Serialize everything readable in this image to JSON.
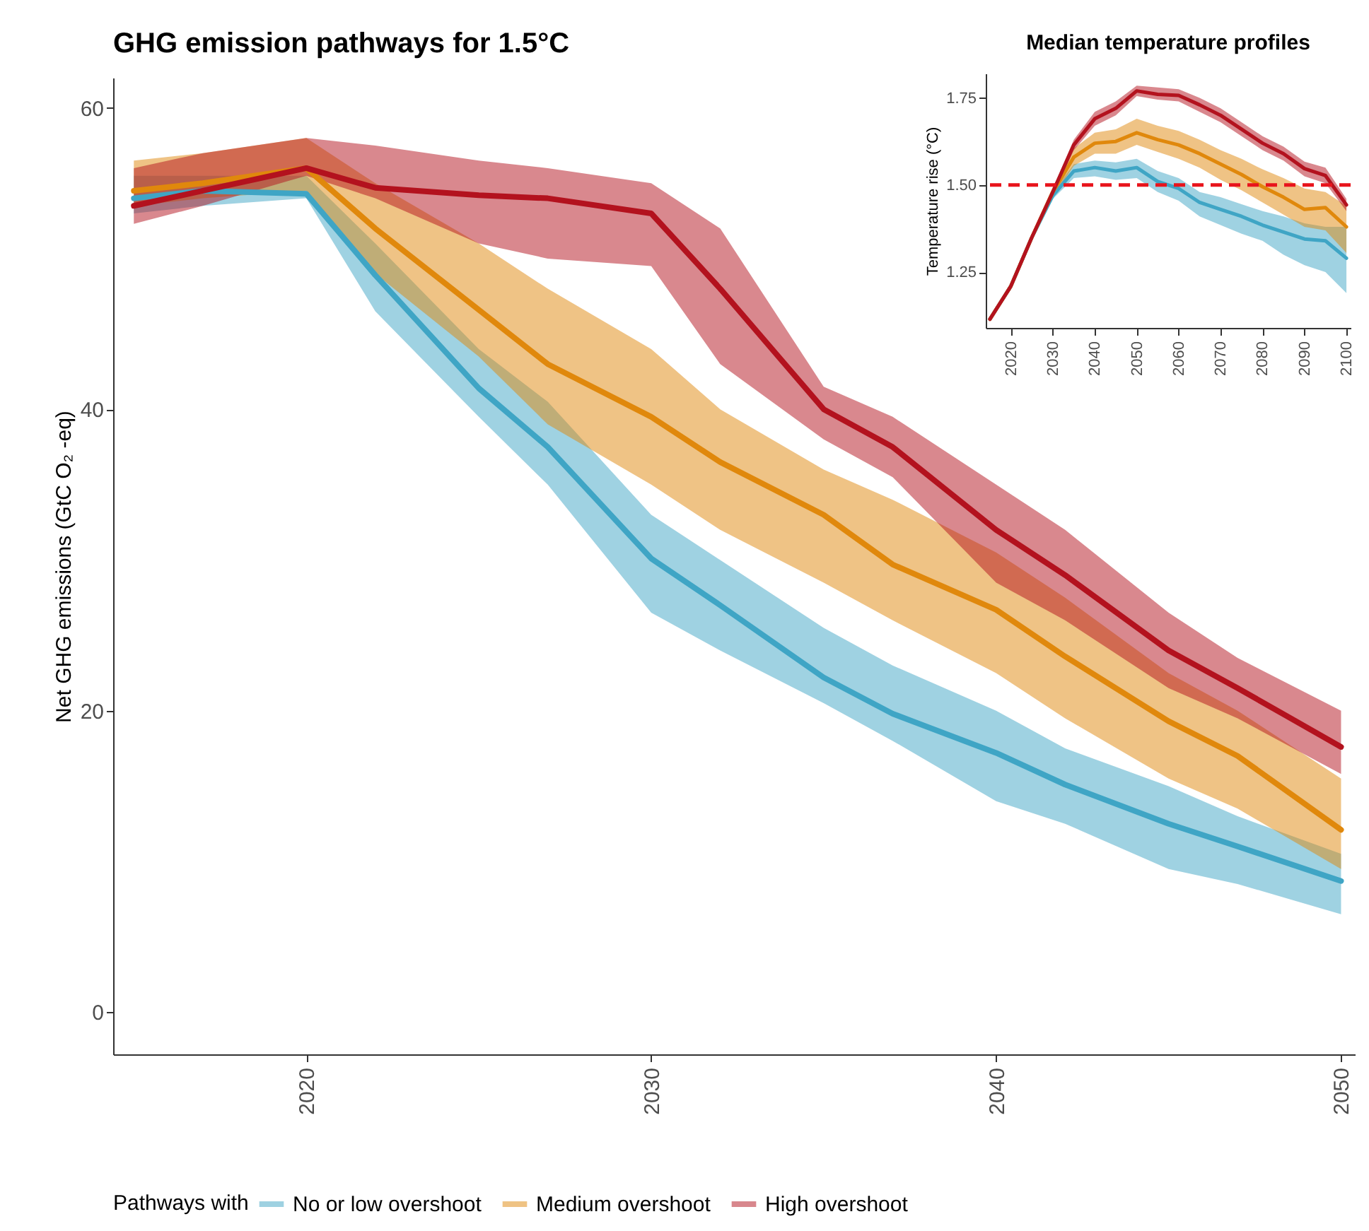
{
  "chart_data": [
    {
      "type": "line",
      "title": "GHG emission pathways for 1.5°C",
      "ylabel": "Net GHG emissions (GtC O₂ -eq)",
      "legend_title": "Pathways with",
      "legend": "bottom",
      "grid": false,
      "x": [
        2015,
        2017,
        2020,
        2022,
        2025,
        2027,
        2030,
        2032,
        2035,
        2037,
        2040,
        2042,
        2045,
        2047,
        2050
      ],
      "xlim": [
        2014.4,
        2050.4
      ],
      "xticks": [
        2020,
        2030,
        2040,
        2050
      ],
      "ylim": [
        -2.8,
        62
      ],
      "yticks": [
        0,
        20,
        40,
        60
      ],
      "series": [
        {
          "name": "No or low overshoot",
          "color": "#3fa5c5",
          "values": [
            54,
            54.5,
            54.3,
            48.9,
            41.4,
            37.5,
            30.1,
            27,
            22.2,
            19.8,
            17.2,
            15.1,
            12.5,
            11,
            8.7
          ],
          "lower": [
            53,
            53.5,
            54,
            46.5,
            39.5,
            35,
            26.5,
            24,
            20.5,
            18,
            14,
            12.5,
            9.5,
            8.5,
            6.5
          ],
          "upper": [
            55.5,
            55.5,
            55.5,
            51,
            44,
            40.5,
            33,
            30,
            25.5,
            23,
            20,
            17.5,
            15,
            13,
            10.5
          ]
        },
        {
          "name": "Medium overshoot",
          "color": "#e0880c",
          "values": [
            54.5,
            55,
            56,
            52,
            46.6,
            43,
            39.5,
            36.5,
            33,
            29.7,
            26.7,
            23.6,
            19.3,
            17,
            12.1
          ],
          "lower": [
            53.5,
            54,
            54.5,
            49,
            43.5,
            39,
            35,
            32,
            28.5,
            26,
            22.5,
            19.5,
            15.5,
            13.5,
            9.5
          ],
          "upper": [
            56.5,
            57,
            58,
            55,
            51,
            48,
            44,
            40,
            36,
            34,
            30.5,
            27.5,
            22.5,
            20,
            15.5
          ]
        },
        {
          "name": "High overshoot",
          "color": "#b3121e",
          "values": [
            53.5,
            54.5,
            56,
            54.7,
            54.2,
            54,
            53,
            48,
            40,
            37.5,
            32,
            29,
            24,
            21.5,
            17.6
          ],
          "lower": [
            52.3,
            53.5,
            55.5,
            54,
            51,
            50,
            49.5,
            43,
            38,
            35.5,
            28.5,
            26,
            21.5,
            19.5,
            15.8
          ],
          "upper": [
            56,
            57,
            58,
            57.5,
            56.5,
            56,
            55,
            52,
            41.5,
            39.5,
            35,
            32,
            26.5,
            23.5,
            20
          ]
        }
      ]
    },
    {
      "type": "line",
      "title": "Median temperature profiles",
      "ylabel": "Temperature rise (°C)",
      "grid": false,
      "x": [
        2015,
        2020,
        2025,
        2030,
        2035,
        2040,
        2045,
        2050,
        2055,
        2060,
        2065,
        2070,
        2075,
        2080,
        2085,
        2090,
        2095,
        2100
      ],
      "xlim": [
        2014,
        2101
      ],
      "xticks": [
        2020,
        2030,
        2040,
        2050,
        2060,
        2070,
        2080,
        2090,
        2100
      ],
      "ylim": [
        1.09,
        1.82
      ],
      "yticks": [
        1.25,
        {
          "value": 1.5,
          "label": "1.50"
        },
        1.75
      ],
      "ref_lines": [
        {
          "axis": "y",
          "value": 1.5,
          "color": "#e8141c",
          "line_style": "dashed"
        }
      ],
      "series": [
        {
          "color": "#3fa5c5",
          "values": [
            1.115,
            1.21,
            1.35,
            1.47,
            1.54,
            1.55,
            1.54,
            1.55,
            1.51,
            1.49,
            1.45,
            1.43,
            1.41,
            1.385,
            1.365,
            1.345,
            1.34,
            1.29
          ],
          "lower": [
            1.11,
            1.2,
            1.34,
            1.46,
            1.52,
            1.525,
            1.515,
            1.52,
            1.48,
            1.455,
            1.41,
            1.385,
            1.36,
            1.34,
            1.3,
            1.27,
            1.25,
            1.19
          ],
          "upper": [
            1.12,
            1.22,
            1.36,
            1.48,
            1.56,
            1.57,
            1.565,
            1.575,
            1.54,
            1.52,
            1.48,
            1.465,
            1.445,
            1.425,
            1.41,
            1.39,
            1.38,
            1.38
          ]
        },
        {
          "color": "#e0880c",
          "values": [
            1.115,
            1.21,
            1.35,
            1.48,
            1.58,
            1.62,
            1.625,
            1.65,
            1.63,
            1.615,
            1.59,
            1.56,
            1.53,
            1.495,
            1.465,
            1.43,
            1.435,
            1.38
          ],
          "lower": [
            1.11,
            1.2,
            1.34,
            1.465,
            1.555,
            1.59,
            1.59,
            1.615,
            1.595,
            1.575,
            1.55,
            1.515,
            1.485,
            1.45,
            1.415,
            1.38,
            1.37,
            1.305
          ],
          "upper": [
            1.12,
            1.22,
            1.36,
            1.495,
            1.605,
            1.65,
            1.66,
            1.69,
            1.67,
            1.655,
            1.63,
            1.6,
            1.575,
            1.545,
            1.52,
            1.49,
            1.48,
            1.44
          ]
        },
        {
          "color": "#b3121e",
          "values": [
            1.115,
            1.21,
            1.35,
            1.48,
            1.615,
            1.69,
            1.72,
            1.77,
            1.76,
            1.757,
            1.73,
            1.7,
            1.66,
            1.62,
            1.59,
            1.547,
            1.527,
            1.443
          ],
          "lower": [
            1.11,
            1.2,
            1.34,
            1.47,
            1.6,
            1.67,
            1.7,
            1.755,
            1.745,
            1.74,
            1.71,
            1.68,
            1.64,
            1.6,
            1.57,
            1.525,
            1.505,
            1.425
          ],
          "upper": [
            1.12,
            1.22,
            1.36,
            1.49,
            1.63,
            1.71,
            1.74,
            1.785,
            1.78,
            1.775,
            1.75,
            1.72,
            1.68,
            1.64,
            1.61,
            1.567,
            1.55,
            1.46
          ]
        }
      ]
    }
  ]
}
